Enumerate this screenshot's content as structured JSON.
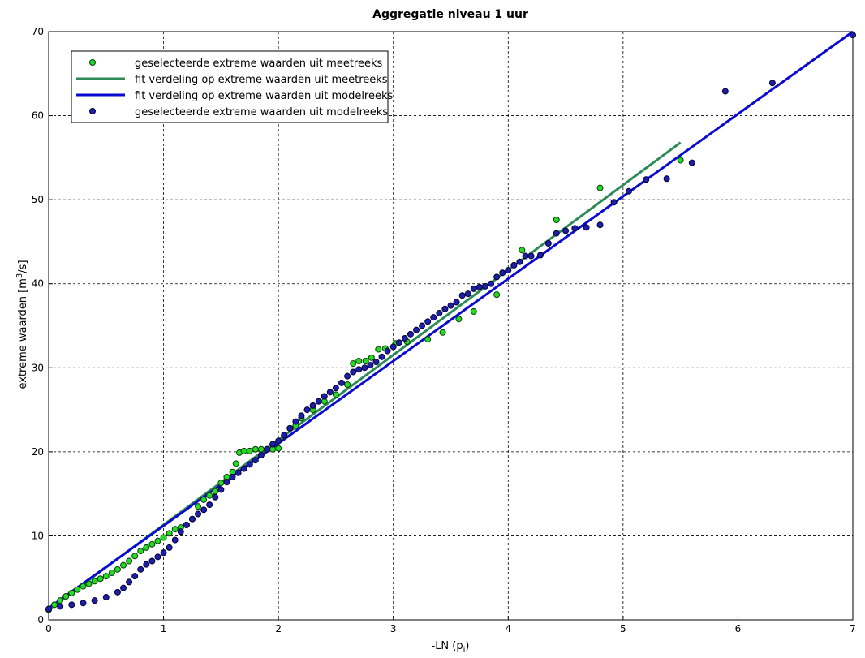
{
  "chart_data": {
    "type": "scatter",
    "title": "Aggregatie niveau 1 uur",
    "xlabel_parts": [
      "-LN (p",
      "i",
      ")"
    ],
    "ylabel_parts": [
      "extreme waarden [m",
      "3",
      "/s]"
    ],
    "xlim": [
      0,
      7
    ],
    "ylim": [
      0,
      70
    ],
    "xticks": [
      0,
      1,
      2,
      3,
      4,
      5,
      6,
      7
    ],
    "yticks": [
      0,
      10,
      20,
      30,
      40,
      50,
      60,
      70
    ],
    "grid": true,
    "legend": "upper left",
    "series": [
      {
        "name": "geselecteerde extreme waarden uit meetreeks",
        "style": "markers",
        "color": "#22dd22",
        "edge": "#0a3a0a",
        "x": [
          0,
          0.05,
          0.1,
          0.15,
          0.2,
          0.25,
          0.3,
          0.35,
          0.4,
          0.45,
          0.5,
          0.55,
          0.6,
          0.65,
          0.7,
          0.75,
          0.8,
          0.85,
          0.9,
          0.95,
          1.0,
          1.05,
          1.1,
          1.15,
          1.2,
          1.25,
          1.3,
          1.35,
          1.4,
          1.45,
          1.5,
          1.55,
          1.6,
          1.63,
          1.66,
          1.7,
          1.75,
          1.8,
          1.85,
          1.9,
          1.95,
          2.0,
          2.05,
          2.1,
          2.15,
          2.2,
          2.3,
          2.4,
          2.5,
          2.6,
          2.65,
          2.7,
          2.76,
          2.81,
          2.87,
          2.93,
          3.02,
          3.12,
          3.3,
          3.43,
          3.57,
          3.7,
          3.9,
          4.12,
          4.42,
          4.8,
          5.5
        ],
        "values": [
          1.2,
          1.8,
          2.3,
          2.8,
          3.2,
          3.6,
          4.0,
          4.3,
          4.6,
          4.9,
          5.2,
          5.6,
          6.0,
          6.5,
          7.0,
          7.6,
          8.2,
          8.6,
          9.0,
          9.4,
          9.8,
          10.3,
          10.8,
          11.0,
          11.3,
          12.0,
          13.5,
          14.3,
          14.8,
          15.3,
          16.3,
          17.0,
          17.6,
          18.6,
          19.9,
          20.1,
          20.1,
          20.3,
          20.3,
          20.3,
          20.3,
          20.4,
          21.9,
          22.8,
          23.1,
          24.0,
          25.0,
          26.0,
          26.8,
          28.0,
          30.5,
          30.8,
          30.8,
          31.2,
          32.2,
          32.3,
          32.9,
          33.1,
          33.4,
          34.2,
          35.8,
          36.7,
          38.7,
          44.0,
          47.6,
          51.4,
          54.7
        ]
      },
      {
        "name": "fit verdeling op extreme waarden uit meetreeks",
        "style": "line",
        "color": "#2e8b57",
        "x": [
          0,
          5.5
        ],
        "values": [
          1.2,
          56.8
        ]
      },
      {
        "name": "fit verdeling op extreme waarden uit modelreeks",
        "style": "line",
        "color": "#0a0ad0",
        "x": [
          0,
          7
        ],
        "values": [
          1.4,
          70
        ]
      },
      {
        "name": "geselecteerde extreme waarden uit modelreeks",
        "style": "markers",
        "color": "#1e1eaa",
        "edge": "#000033",
        "x": [
          0,
          0.1,
          0.2,
          0.3,
          0.4,
          0.5,
          0.6,
          0.65,
          0.7,
          0.75,
          0.8,
          0.85,
          0.9,
          0.95,
          1.0,
          1.05,
          1.1,
          1.15,
          1.2,
          1.25,
          1.3,
          1.35,
          1.4,
          1.45,
          1.5,
          1.55,
          1.6,
          1.65,
          1.7,
          1.75,
          1.8,
          1.85,
          1.9,
          1.95,
          2.0,
          2.05,
          2.1,
          2.15,
          2.2,
          2.25,
          2.3,
          2.35,
          2.4,
          2.45,
          2.5,
          2.55,
          2.6,
          2.65,
          2.7,
          2.75,
          2.8,
          2.85,
          2.9,
          2.95,
          3.0,
          3.05,
          3.1,
          3.15,
          3.2,
          3.25,
          3.3,
          3.35,
          3.4,
          3.45,
          3.5,
          3.55,
          3.6,
          3.65,
          3.7,
          3.75,
          3.8,
          3.85,
          3.9,
          3.95,
          4.0,
          4.05,
          4.1,
          4.15,
          4.2,
          4.28,
          4.35,
          4.42,
          4.5,
          4.58,
          4.68,
          4.8,
          4.92,
          5.05,
          5.2,
          5.38,
          5.6,
          5.89,
          6.3,
          7.0
        ],
        "values": [
          1.3,
          1.6,
          1.8,
          2.0,
          2.3,
          2.7,
          3.3,
          3.8,
          4.5,
          5.2,
          6.0,
          6.6,
          7.0,
          7.5,
          8.0,
          8.6,
          9.5,
          10.5,
          11.3,
          12.0,
          12.6,
          13.1,
          13.7,
          14.6,
          15.5,
          16.4,
          17.0,
          17.5,
          18.0,
          18.5,
          19.0,
          19.6,
          20.3,
          20.9,
          21.3,
          22.0,
          22.8,
          23.6,
          24.3,
          25.0,
          25.5,
          26.0,
          26.6,
          27.1,
          27.6,
          28.2,
          29.0,
          29.5,
          29.8,
          30.0,
          30.3,
          30.7,
          31.3,
          32.0,
          32.5,
          33.0,
          33.5,
          34.0,
          34.5,
          35.0,
          35.5,
          36.0,
          36.5,
          37.0,
          37.4,
          37.8,
          38.6,
          38.8,
          39.4,
          39.6,
          39.7,
          40.0,
          40.8,
          41.3,
          41.6,
          42.2,
          42.6,
          43.3,
          43.3,
          43.4,
          44.8,
          46.0,
          46.3,
          46.6,
          46.7,
          47.0,
          49.7,
          51.0,
          52.4,
          52.5,
          54.4,
          62.9,
          63.9,
          69.6
        ]
      }
    ]
  }
}
